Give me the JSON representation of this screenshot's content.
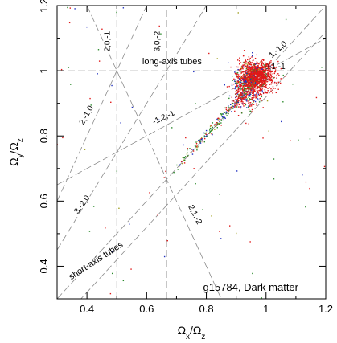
{
  "chart_data": {
    "type": "scatter",
    "xlim": [
      0.3,
      1.2
    ],
    "ylim": [
      0.3,
      1.2
    ],
    "x_ticks": [
      0.4,
      0.6,
      0.8,
      1.0,
      1.2
    ],
    "y_ticks": [
      0.4,
      0.6,
      0.8,
      1.0,
      1.2
    ],
    "x_tick_labels": [
      "0.4",
      "0.6",
      "0.8",
      "1",
      "1.2"
    ],
    "y_tick_labels": [
      "0.4",
      "0.6",
      "0.8",
      "1",
      "1.2"
    ],
    "xlabel_main": "Ω",
    "xlabel_sub1": "x",
    "xlabel_sep": "/Ω",
    "xlabel_sub2": "z",
    "ylabel_main": "Ω",
    "ylabel_sub1": "y",
    "ylabel_sep": "/Ω",
    "ylabel_sub2": "z",
    "grid": false,
    "panel_label": "g15784, Dark matter",
    "region_labels": [
      {
        "text": "long-axis tubes"
      },
      {
        "text": "short-axis tubes"
      }
    ],
    "resonance_lines": [
      {
        "label": "2,0,-1",
        "x1": 0.5,
        "y1": 0.3,
        "x2": 0.5,
        "y2": 1.2,
        "lx": 0.476,
        "ly": 1.09,
        "angle": -90
      },
      {
        "label": "3,0,-2",
        "x1": 0.6667,
        "y1": 0.3,
        "x2": 0.6667,
        "y2": 1.2,
        "lx": 0.644,
        "ly": 1.09,
        "angle": -90
      },
      {
        "label": "0,1,-1",
        "x1": 0.3,
        "y1": 1.0,
        "x2": 1.2,
        "y2": 1.0,
        "lx": 1.03,
        "ly": 1.005,
        "angle": 0
      },
      {
        "label": "2,-1,0",
        "x1": 0.3,
        "y1": 0.6,
        "x2": 0.6,
        "y2": 1.2,
        "lx": 0.405,
        "ly": 0.86,
        "angle": -61
      },
      {
        "label": "3,-2,0",
        "x1": 0.3,
        "y1": 0.45,
        "x2": 0.8,
        "y2": 1.2,
        "lx": 0.39,
        "ly": 0.585,
        "angle": -54
      },
      {
        "label": "1,-1,0",
        "x1": 0.3,
        "y1": 0.3,
        "x2": 1.2,
        "y2": 1.2,
        "lx": 1.045,
        "ly": 1.06,
        "angle": -42
      },
      {
        "label": "2,1,-2",
        "x1": 0.4,
        "y1": 1.2,
        "x2": 0.85,
        "y2": 0.3,
        "lx": 0.755,
        "ly": 0.555,
        "angle": 63
      },
      {
        "label": "-1,2,-1",
        "x1": 0.3,
        "y1": 0.65,
        "x2": 1.2,
        "y2": 1.1,
        "lx": 0.66,
        "ly": 0.85,
        "angle": -25
      },
      {
        "label": "",
        "x1": 0.3,
        "y1": 0.22,
        "x2": 1.3,
        "y2": 1.22,
        "lx": 0,
        "ly": 0,
        "angle": 0
      }
    ],
    "series": [
      {
        "color": "#e01818"
      },
      {
        "color": "#2a8a2a"
      },
      {
        "color": "#2030c0"
      },
      {
        "color": "#a0a020"
      }
    ],
    "clusters": [
      {
        "cx": 0.97,
        "cy": 0.985,
        "sx": 0.028,
        "sy": 0.022,
        "n": 1100
      },
      {
        "cx": 0.945,
        "cy": 0.955,
        "sx": 0.025,
        "sy": 0.028,
        "n": 350
      },
      {
        "cx": 0.92,
        "cy": 0.93,
        "sx": 0.02,
        "sy": 0.03,
        "n": 150
      }
    ],
    "diagonal_band": {
      "x_start": 0.68,
      "x_end": 0.96,
      "offset": 0.003,
      "spread": 0.006,
      "n": 260
    },
    "scatter_background_n": 90
  }
}
